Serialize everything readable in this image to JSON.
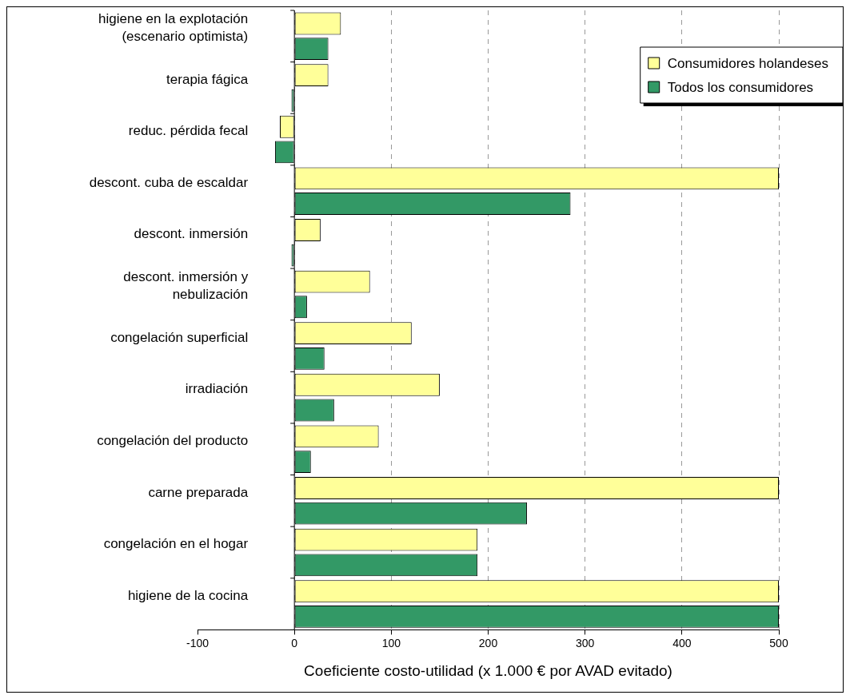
{
  "chart_data": {
    "type": "bar",
    "orientation": "horizontal",
    "xlabel": "Coeficiente costo-utilidad (x 1.000 € por AVAD evitado)",
    "categories": [
      "higiene en la explotación (escenario optimista)",
      "terapia fágica",
      "reduc. pérdida fecal",
      "descont. cuba de escaldar",
      "descont. inmersión",
      "descont. inmersión y nebulización",
      "congelación superficial",
      "irradiación",
      "congelación del producto",
      "carne preparada",
      "congelación en el hogar",
      "higiene de la cocina"
    ],
    "series": [
      {
        "name": "Consumidores holandeses",
        "color": "#ffff99",
        "values": [
          48,
          35,
          -15,
          500,
          27,
          78,
          121,
          150,
          87,
          500,
          189,
          500
        ]
      },
      {
        "name": "Todos los consumidores",
        "color": "#339966",
        "values": [
          35,
          -3,
          -20,
          285,
          -3,
          13,
          31,
          41,
          17,
          240,
          189,
          500
        ]
      }
    ],
    "xlim": [
      -100,
      500
    ],
    "xticks": [
      -100,
      0,
      100,
      200,
      300,
      400,
      500
    ],
    "grid": "x",
    "legend": "top right"
  }
}
